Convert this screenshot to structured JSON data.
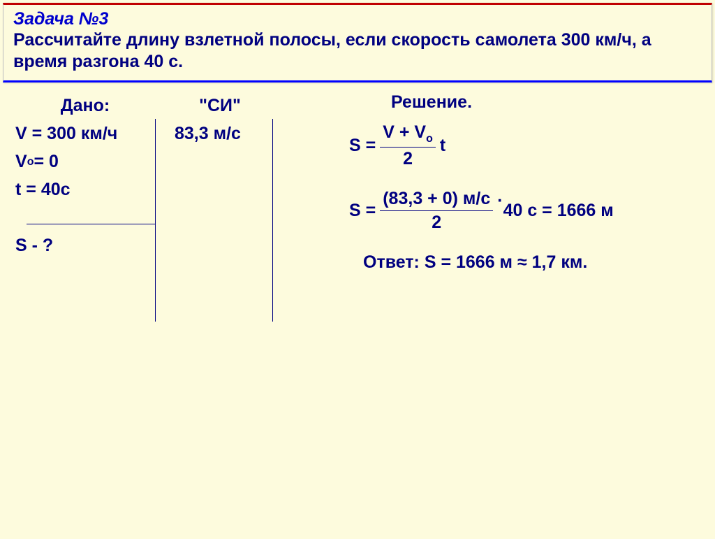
{
  "colors": {
    "background": "#fdfbdd",
    "title_color": "#0000cd",
    "text_color": "#000080",
    "border_top": "#c00000",
    "border_bottom": "#0000ff"
  },
  "typography": {
    "font_family": "Arial",
    "title_fontsize_pt": 19,
    "body_fontsize_pt": 19,
    "font_weight": "bold",
    "title_style": "italic"
  },
  "header": {
    "title": "Задача №3",
    "problem_text": "Рассчитайте длину взлетной полосы, если скорость самолета 300 км/ч, а время разгона 40 с."
  },
  "given": {
    "heading": "Дано:",
    "lines": {
      "v": "V = 300 км/ч",
      "v0_label_pre": "V",
      "v0_sub": "o",
      "v0_label_post": " = 0",
      "t": " t = 40с",
      "find": "S - ?"
    }
  },
  "si": {
    "heading": "\"СИ\"",
    "v_converted": "83,3 м/с"
  },
  "solution": {
    "heading": "Решение.",
    "formula": {
      "lhs": "S = ",
      "numerator_pre": "V + V",
      "numerator_sub": "o",
      "denominator": "2",
      "rhs": " t"
    },
    "calc": {
      "lhs": "S = ",
      "numerator": "(83,3 + 0) м/с",
      "denominator": "2",
      "middle_dot": "·",
      "rhs": " 40 с = 1666 м"
    },
    "answer": "Ответ: S = 1666 м ≈ 1,7 км."
  }
}
